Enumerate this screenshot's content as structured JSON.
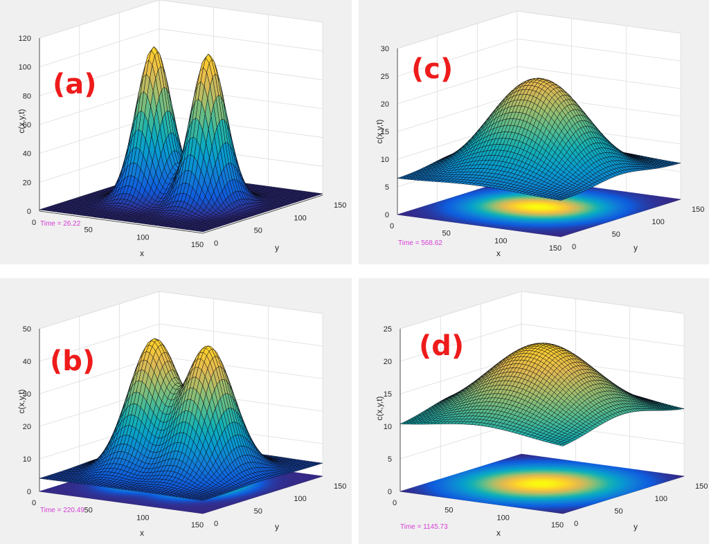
{
  "colors": {
    "background": "#f0f0f0",
    "plot_area": "#ffffff",
    "grid": "#d9d9d9",
    "axis_text": "#262626",
    "panel_label": "#ee1b1b",
    "time_text": "#d63cd6",
    "colormap": "parula"
  },
  "chart_data": [
    {
      "type": "surface",
      "panel_label": "(a)",
      "time_text": "Time = 26.22",
      "zlabel": "c(x,y,t)",
      "xlabel": "x",
      "ylabel": "y",
      "xlim": [
        0,
        150
      ],
      "ylim": [
        0,
        150
      ],
      "zlim": [
        0,
        120
      ],
      "xticks": [
        "0",
        "50",
        "100",
        "150"
      ],
      "yticks": [
        "0",
        "50",
        "100",
        "150"
      ],
      "zticks": [
        "0",
        "20",
        "40",
        "60",
        "80",
        "100",
        "120"
      ],
      "surface_function": {
        "baseline": 1,
        "peaks": [
          {
            "x": 50,
            "y": 75,
            "amplitude": 105,
            "sigma_x": 17,
            "sigma_y": 22
          },
          {
            "x": 100,
            "y": 75,
            "amplitude": 105,
            "sigma_x": 17,
            "sigma_y": 22
          }
        ]
      },
      "projection_on_floor": false
    },
    {
      "type": "surface",
      "panel_label": "(b)",
      "time_text": "Time = 220.49",
      "zlabel": "c(x,y,t)",
      "xlabel": "x",
      "ylabel": "y",
      "xlim": [
        0,
        150
      ],
      "ylim": [
        0,
        150
      ],
      "zlim": [
        0,
        50
      ],
      "xticks": [
        "0",
        "50",
        "100",
        "150"
      ],
      "yticks": [
        "0",
        "50",
        "100",
        "150"
      ],
      "zticks": [
        "0",
        "10",
        "20",
        "30",
        "40",
        "50"
      ],
      "surface_function": {
        "baseline": 4,
        "peaks": [
          {
            "x": 50,
            "y": 75,
            "amplitude": 39,
            "sigma_x": 24,
            "sigma_y": 32
          },
          {
            "x": 100,
            "y": 75,
            "amplitude": 39,
            "sigma_x": 24,
            "sigma_y": 32
          }
        ]
      },
      "projection_on_floor": true
    },
    {
      "type": "surface",
      "panel_label": "(c)",
      "time_text": "Time = 568.62",
      "zlabel": "c(x,y,t)",
      "xlabel": "x",
      "ylabel": "y",
      "xlim": [
        0,
        150
      ],
      "ylim": [
        0,
        150
      ],
      "zlim": [
        0,
        30
      ],
      "xticks": [
        "0",
        "50",
        "100",
        "150"
      ],
      "yticks": [
        "0",
        "50",
        "100",
        "150"
      ],
      "zticks": [
        "0",
        "5",
        "10",
        "15",
        "20",
        "25",
        "30"
      ],
      "surface_function": {
        "baseline": 6.5,
        "peaks": [
          {
            "x": 55,
            "y": 75,
            "amplitude": 11,
            "sigma_x": 38,
            "sigma_y": 42
          },
          {
            "x": 95,
            "y": 75,
            "amplitude": 11,
            "sigma_x": 38,
            "sigma_y": 42
          }
        ]
      },
      "projection_on_floor": true
    },
    {
      "type": "surface",
      "panel_label": "(d)",
      "time_text": "Time = 1145.73",
      "zlabel": "c(x,y,t)",
      "xlabel": "x",
      "ylabel": "y",
      "xlim": [
        0,
        150
      ],
      "ylim": [
        0,
        150
      ],
      "zlim": [
        0,
        25
      ],
      "xticks": [
        "0",
        "50",
        "100",
        "150"
      ],
      "yticks": [
        "0",
        "50",
        "100",
        "150"
      ],
      "zticks": [
        "0",
        "5",
        "10",
        "15",
        "20",
        "25"
      ],
      "surface_function": {
        "baseline": 10,
        "peaks": [
          {
            "x": 75,
            "y": 75,
            "amplitude": 11.5,
            "sigma_x": 60,
            "sigma_y": 55
          }
        ]
      },
      "projection_on_floor": true
    }
  ]
}
